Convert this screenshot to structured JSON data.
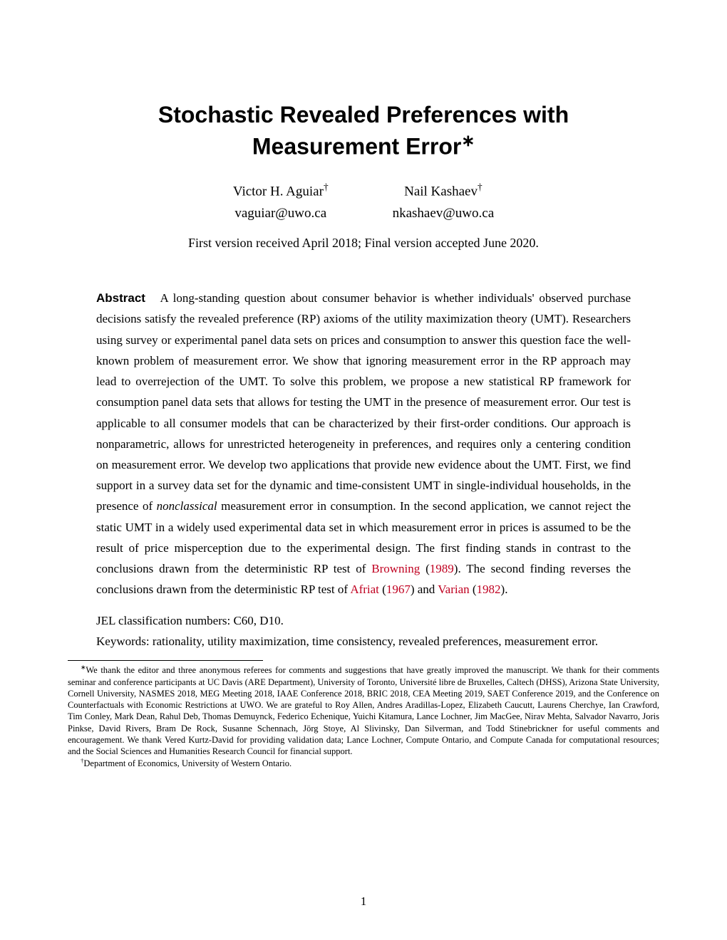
{
  "title_line1": "Stochastic Revealed Preferences with",
  "title_line2": "Measurement Error",
  "title_mark": "∗",
  "authors": [
    {
      "name": "Victor H. Aguiar",
      "mark": "†",
      "email": "vaguiar@uwo.ca"
    },
    {
      "name": "Nail Kashaev",
      "mark": "†",
      "email": "nkashaev@uwo.ca"
    }
  ],
  "version_line": "First version received April 2018; Final version accepted June 2020.",
  "abstract_label": "Abstract",
  "abstract_part1": "A long-standing question about consumer behavior is whether individuals' observed purchase decisions satisfy the revealed preference (RP) axioms of the utility maximization theory (UMT). Researchers using survey or experimental panel data sets on prices and consumption to answer this question face the well-known problem of measurement error. We show that ignoring measurement error in the RP approach may lead to overrejection of the UMT. To solve this problem, we propose a new statistical RP framework for consumption panel data sets that allows for testing the UMT in the presence of measurement error. Our test is applicable to all consumer models that can be characterized by their first-order conditions. Our approach is nonparametric, allows for unrestricted heterogeneity in preferences, and requires only a centering condition on measurement error. We develop two applications that provide new evidence about the UMT. First, we find support in a survey data set for the dynamic and time-consistent UMT in single-individual households, in the presence of ",
  "abstract_italic": "nonclassical",
  "abstract_part2": " measurement error in consumption. In the second application, we cannot reject the static UMT in a widely used experimental data set in which measurement error in prices is assumed to be the result of price misperception due to the experimental design. The first finding stands in contrast to the conclusions drawn from the deterministic RP test of ",
  "cite1_author": "Browning",
  "cite1_year": "1989",
  "abstract_part3": ". The second finding reverses the conclusions drawn from the deterministic RP test of ",
  "cite2_author": "Afriat",
  "cite2_year": "1967",
  "abstract_part4": " and ",
  "cite3_author": "Varian",
  "cite3_year": "1982",
  "abstract_part5": ".",
  "jel": "JEL classification numbers: C60, D10.",
  "keywords": "Keywords: rationality, utility maximization, time consistency, revealed preferences, measurement error.",
  "footnote_star_mark": "∗",
  "footnote_star": "We thank the editor and three anonymous referees for comments and suggestions that have greatly improved the manuscript. We thank for their comments seminar and conference participants at UC Davis (ARE Department), University of Toronto, Université libre de Bruxelles, Caltech (DHSS), Arizona State University, Cornell University, NASMES 2018, MEG Meeting 2018, IAAE Conference 2018, BRIC 2018, CEA Meeting 2019, SAET Conference 2019, and the Conference on Counterfactuals with Economic Restrictions at UWO. We are grateful to Roy Allen, Andres Aradillas-Lopez, Elizabeth Caucutt, Laurens Cherchye, Ian Crawford, Tim Conley, Mark Dean, Rahul Deb, Thomas Demuynck, Federico Echenique, Yuichi Kitamura, Lance Lochner, Jim MacGee, Nirav Mehta, Salvador Navarro, Joris Pinkse, David Rivers, Bram De Rock, Susanne Schennach, Jörg Stoye, Al Slivinsky, Dan Silverman, and Todd Stinebrickner for useful comments and encouragement. We thank Vered Kurtz-David for providing validation data; Lance Lochner, Compute Ontario, and Compute Canada for computational resources; and the Social Sciences and Humanities Research Council for financial support.",
  "footnote_dagger_mark": "†",
  "footnote_dagger": "Department of Economics, University of Western Ontario.",
  "page_number": "1",
  "colors": {
    "cite": "#c00020",
    "text": "#000000",
    "background": "#ffffff"
  },
  "typography": {
    "title_fontsize": 32,
    "body_fontsize": 17,
    "footnote_fontsize": 12.5,
    "author_fontsize": 19
  }
}
